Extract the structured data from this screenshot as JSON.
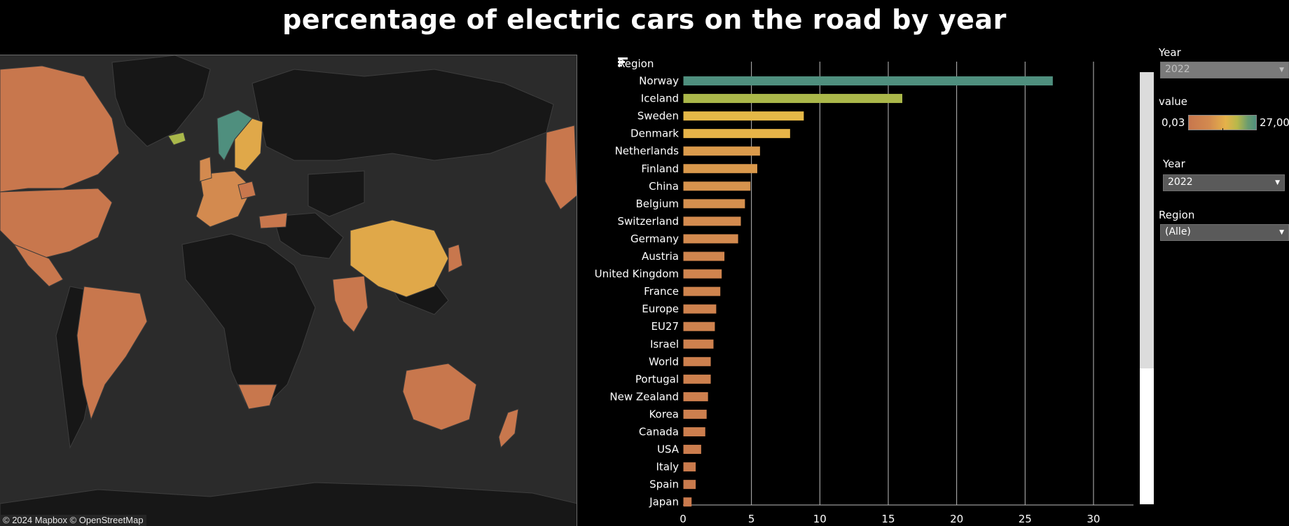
{
  "title": "percentage of electric cars on the road by year",
  "map": {
    "attribution": "© 2024 Mapbox  © OpenStreetMap",
    "colors": {
      "background": "#2b2b2b",
      "land_no_data": "#151515",
      "low": "#c8774d",
      "mid_low": "#d38a4f",
      "mid": "#e0a849",
      "high": "#e9b847",
      "iceland": "#a9b84a",
      "norway": "#4f8f7e"
    }
  },
  "chart_header": {
    "label": "Region"
  },
  "chart_data": {
    "type": "bar",
    "orientation": "horizontal",
    "categories": [
      "Norway",
      "Iceland",
      "Sweden",
      "Denmark",
      "Netherlands",
      "Finland",
      "China",
      "Belgium",
      "Switzerland",
      "Germany",
      "Austria",
      "United Kingdom",
      "France",
      "Europe",
      "EU27",
      "Israel",
      "World",
      "Portugal",
      "New Zealand",
      "Korea",
      "Canada",
      "USA",
      "Italy",
      "Spain",
      "Japan"
    ],
    "values": [
      27.0,
      16.0,
      8.8,
      7.8,
      5.6,
      5.4,
      4.9,
      4.5,
      4.2,
      4.0,
      3.0,
      2.8,
      2.7,
      2.4,
      2.3,
      2.2,
      2.0,
      2.0,
      1.8,
      1.7,
      1.6,
      1.3,
      0.9,
      0.9,
      0.6
    ],
    "xlim": [
      0,
      32
    ],
    "xticks": [
      "0",
      "5",
      "10",
      "15",
      "20",
      "25",
      "30"
    ],
    "ylabel": "Region",
    "grid": true,
    "color_scale": {
      "min": 0.03,
      "max": 27.0
    }
  },
  "filters": {
    "year_top": {
      "label": "Year",
      "value": "2022"
    },
    "legend": {
      "label": "value",
      "min_label": "0,03",
      "max_label": "27,00"
    },
    "year": {
      "label": "Year",
      "value": "2022"
    },
    "region": {
      "label": "Region",
      "value": "(Alle)"
    }
  }
}
